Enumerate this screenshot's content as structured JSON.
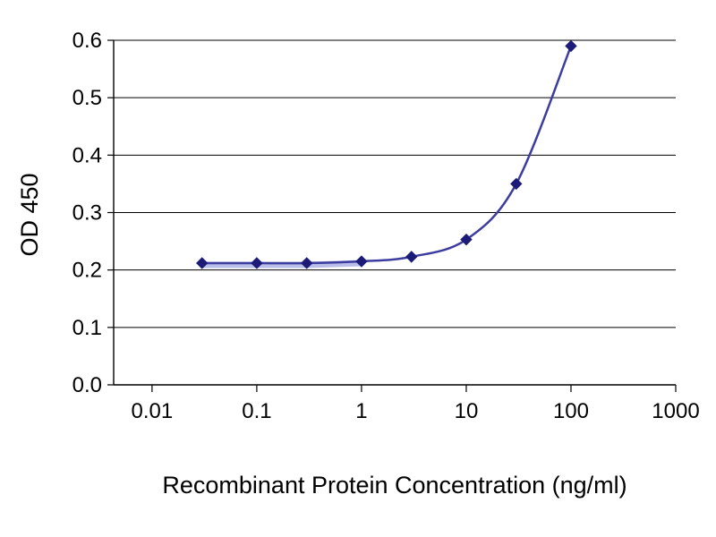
{
  "chart_data": {
    "type": "line",
    "title": "",
    "xlabel": "Recombinant Protein Concentration (ng/ml)",
    "ylabel": "OD 450",
    "x_scale": "log",
    "x": [
      0.03,
      0.1,
      0.3,
      1,
      3,
      10,
      30,
      100
    ],
    "y": [
      0.212,
      0.212,
      0.212,
      0.215,
      0.223,
      0.253,
      0.35,
      0.59
    ],
    "xticks": [
      0.01,
      0.1,
      1,
      10,
      100,
      1000
    ],
    "xtick_labels": [
      "0.01",
      "0.1",
      "1",
      "10",
      "100",
      "1000"
    ],
    "yticks": [
      0.0,
      0.1,
      0.2,
      0.3,
      0.4,
      0.5,
      0.6
    ],
    "ytick_labels": [
      "0.0",
      "0.1",
      "0.2",
      "0.3",
      "0.4",
      "0.5",
      "0.6"
    ],
    "xlim": [
      0.0043,
      1000
    ],
    "ylim": [
      0.0,
      0.6
    ],
    "grid": "horizontal",
    "legend": "none",
    "line_color": "#3d3da0",
    "flat_band_color": "#b9bfe8",
    "marker": "diamond",
    "marker_color": "#1c1c78",
    "axis_color": "#000000",
    "background_color": "#ffffff"
  }
}
